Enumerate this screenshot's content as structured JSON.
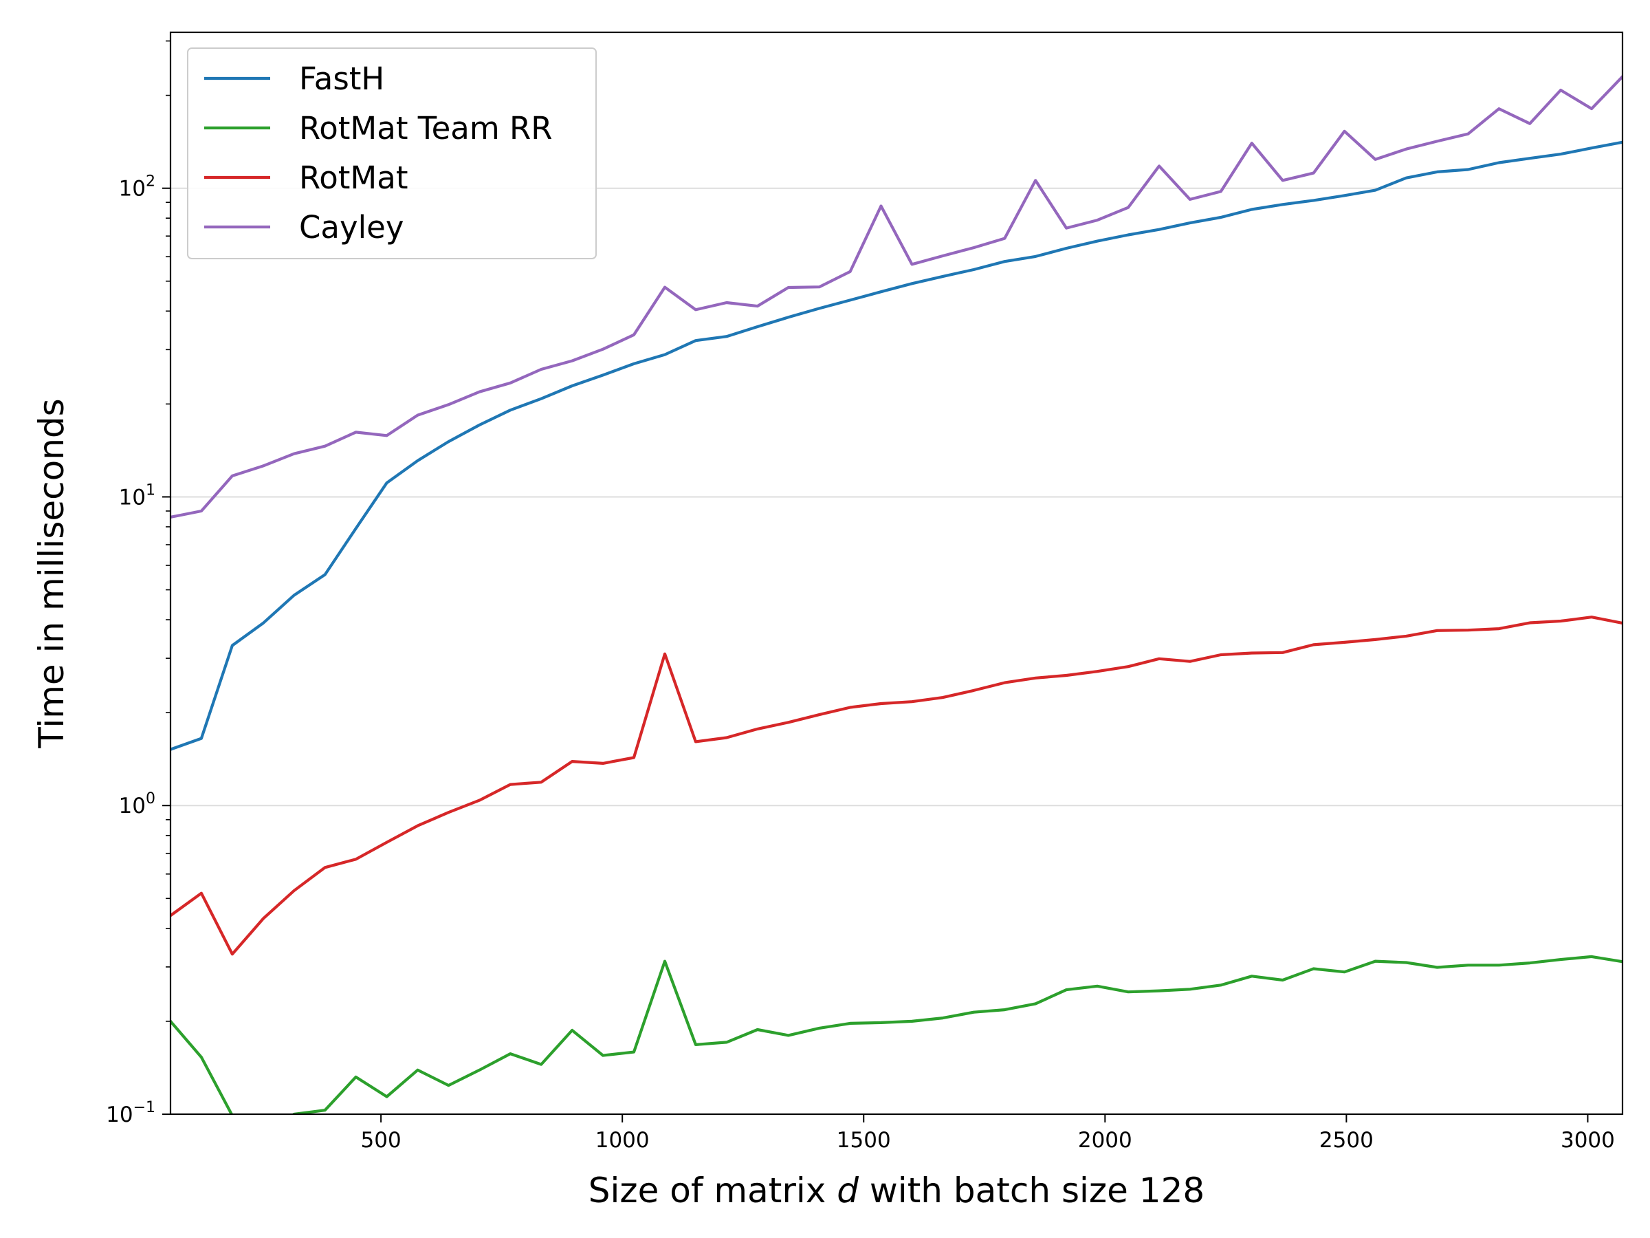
{
  "chart_data": {
    "type": "line",
    "xlabel_parts": [
      "Size of matrix ",
      "d",
      " with batch size 128"
    ],
    "ylabel": "Time in milliseconds",
    "yscale": "log",
    "xlim": [
      64,
      3072
    ],
    "ylim": [
      0.1,
      320
    ],
    "xticks": [
      500,
      1000,
      1500,
      2000,
      2500,
      3000
    ],
    "yticks": [
      0.1,
      1,
      10,
      100
    ],
    "ytick_labels": [
      {
        "base": "10",
        "exp": "−1"
      },
      {
        "base": "10",
        "exp": "0"
      },
      {
        "base": "10",
        "exp": "1"
      },
      {
        "base": "10",
        "exp": "2"
      }
    ],
    "grid": "horizontal",
    "legend_position": "top-left",
    "x": [
      64,
      128,
      192,
      256,
      320,
      384,
      448,
      512,
      576,
      640,
      704,
      768,
      832,
      896,
      960,
      1024,
      1088,
      1152,
      1216,
      1280,
      1344,
      1408,
      1472,
      1536,
      1600,
      1664,
      1728,
      1792,
      1856,
      1920,
      1984,
      2048,
      2112,
      2176,
      2240,
      2304,
      2368,
      2432,
      2496,
      2560,
      2624,
      2688,
      2752,
      2816,
      2880,
      2944,
      3008,
      3072
    ],
    "series": [
      {
        "name": "FastH",
        "color": "#1f77b4",
        "values": [
          1.52,
          1.65,
          3.3,
          3.9,
          4.8,
          5.6,
          7.9,
          11.1,
          13.1,
          15.1,
          17.1,
          19.1,
          20.8,
          22.9,
          24.8,
          27,
          28.9,
          32.1,
          33.1,
          35.6,
          38.2,
          40.8,
          43.4,
          46.2,
          49.1,
          51.8,
          54.5,
          57.9,
          60.1,
          63.9,
          67.4,
          70.6,
          73.5,
          77.2,
          80.5,
          85.4,
          88.6,
          91.3,
          94.7,
          98.5,
          108,
          113,
          115,
          121,
          125,
          129,
          135,
          141
        ]
      },
      {
        "name": "RotMat Team RR",
        "color": "#2ca02c",
        "values": [
          0.2,
          0.153,
          0.099,
          0.085,
          0.1,
          0.103,
          0.132,
          0.114,
          0.139,
          0.124,
          0.139,
          0.157,
          0.145,
          0.187,
          0.155,
          0.159,
          0.313,
          0.168,
          0.171,
          0.188,
          0.18,
          0.19,
          0.197,
          0.198,
          0.2,
          0.205,
          0.214,
          0.218,
          0.228,
          0.253,
          0.26,
          0.249,
          0.251,
          0.254,
          0.262,
          0.28,
          0.272,
          0.296,
          0.289,
          0.313,
          0.31,
          0.299,
          0.304,
          0.304,
          0.309,
          0.317,
          0.324,
          0.312
        ]
      },
      {
        "name": "RotMat",
        "color": "#d62728",
        "values": [
          0.44,
          0.52,
          0.33,
          0.43,
          0.53,
          0.63,
          0.67,
          0.76,
          0.86,
          0.95,
          1.04,
          1.17,
          1.19,
          1.39,
          1.37,
          1.43,
          3.1,
          1.61,
          1.66,
          1.77,
          1.86,
          1.97,
          2.08,
          2.14,
          2.17,
          2.24,
          2.36,
          2.5,
          2.59,
          2.64,
          2.72,
          2.82,
          2.99,
          2.93,
          3.08,
          3.12,
          3.13,
          3.32,
          3.38,
          3.45,
          3.54,
          3.69,
          3.7,
          3.74,
          3.91,
          3.96,
          4.08,
          3.9
        ]
      },
      {
        "name": "Cayley",
        "color": "#9467bd",
        "values": [
          8.6,
          9.0,
          11.7,
          12.6,
          13.8,
          14.6,
          16.2,
          15.8,
          18.4,
          19.9,
          21.9,
          23.4,
          25.9,
          27.6,
          30.1,
          33.5,
          47.8,
          40.4,
          42.6,
          41.5,
          47.7,
          47.9,
          53.7,
          87.6,
          56.7,
          60.4,
          64.2,
          68.8,
          106,
          74.3,
          78.8,
          86.6,
          118,
          92,
          97.6,
          140,
          106,
          112,
          153,
          124,
          134,
          142,
          150,
          181,
          162,
          208,
          181,
          230
        ]
      }
    ]
  }
}
